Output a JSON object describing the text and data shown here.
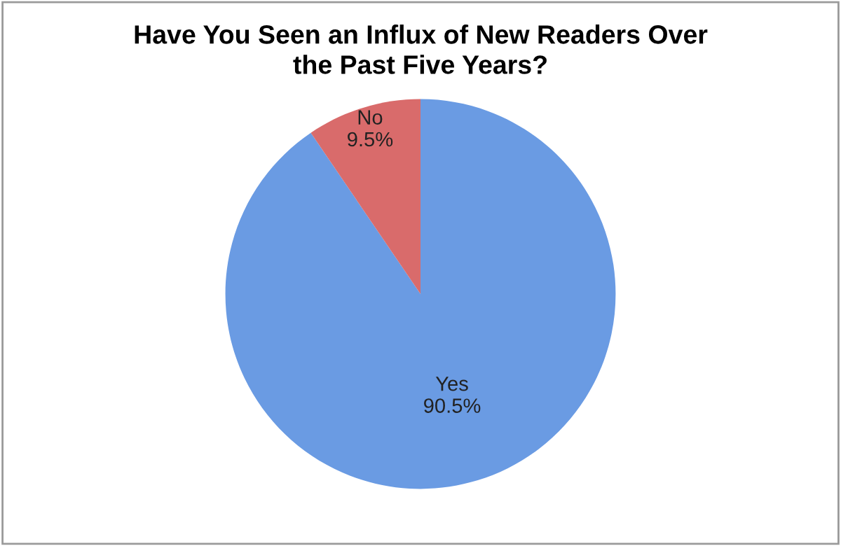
{
  "chart_data": {
    "type": "pie",
    "title": "Have You Seen an Influx of New Readers Over\nthe Past Five Years?",
    "categories": [
      "Yes",
      "No"
    ],
    "values": [
      90.5,
      9.5
    ],
    "colors": [
      "#6a9be3",
      "#d96b6b"
    ],
    "value_labels": [
      "90.5%",
      "9.5%"
    ],
    "legend": false
  }
}
